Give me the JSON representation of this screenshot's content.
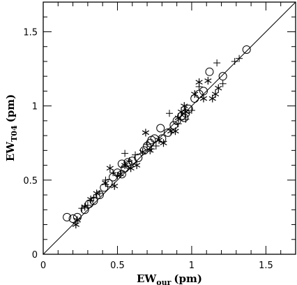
{
  "chart_data": {
    "type": "scatter",
    "title": "",
    "xlabel_main": "EW",
    "xlabel_sub": "our",
    "xlabel_unit": "(pm)",
    "ylabel_main": "EW",
    "ylabel_sub": "T04",
    "ylabel_unit": "(pm)",
    "xlim": [
      0,
      1.7
    ],
    "ylim": [
      0,
      1.7
    ],
    "x_tick_labels": [
      "0",
      "0.5",
      "1",
      "1.5"
    ],
    "y_tick_labels": [
      "0",
      "0.5",
      "1",
      "1.5"
    ],
    "reference_line": {
      "name": "",
      "x": [
        0,
        1.7
      ],
      "y": [
        0,
        1.7
      ]
    },
    "grid": false,
    "series": [
      {
        "marker": "circle",
        "points": [
          [
            0.16,
            0.25
          ],
          [
            0.2,
            0.24
          ],
          [
            0.23,
            0.25
          ],
          [
            0.28,
            0.3
          ],
          [
            0.31,
            0.34
          ],
          [
            0.34,
            0.36
          ],
          [
            0.38,
            0.4
          ],
          [
            0.41,
            0.45
          ],
          [
            0.44,
            0.48
          ],
          [
            0.47,
            0.52
          ],
          [
            0.5,
            0.55
          ],
          [
            0.53,
            0.54
          ],
          [
            0.55,
            0.58
          ],
          [
            0.58,
            0.6
          ],
          [
            0.6,
            0.63
          ],
          [
            0.53,
            0.61
          ],
          [
            0.57,
            0.62
          ],
          [
            0.64,
            0.65
          ],
          [
            0.68,
            0.7
          ],
          [
            0.7,
            0.73
          ],
          [
            0.72,
            0.75
          ],
          [
            0.73,
            0.77
          ],
          [
            0.75,
            0.78
          ],
          [
            0.79,
            0.85
          ],
          [
            0.8,
            0.78
          ],
          [
            0.84,
            0.82
          ],
          [
            0.88,
            0.87
          ],
          [
            0.9,
            0.9
          ],
          [
            0.93,
            0.93
          ],
          [
            0.95,
            0.92
          ],
          [
            0.96,
            0.95
          ],
          [
            0.98,
            0.98
          ],
          [
            1.02,
            1.05
          ],
          [
            1.05,
            1.08
          ],
          [
            1.08,
            1.1
          ],
          [
            1.12,
            1.23
          ],
          [
            1.21,
            1.2
          ],
          [
            1.37,
            1.38
          ]
        ]
      },
      {
        "marker": "plus",
        "points": [
          [
            0.26,
            0.31
          ],
          [
            0.3,
            0.33
          ],
          [
            0.34,
            0.38
          ],
          [
            0.38,
            0.41
          ],
          [
            0.42,
            0.5
          ],
          [
            0.47,
            0.55
          ],
          [
            0.5,
            0.53
          ],
          [
            0.55,
            0.68
          ],
          [
            0.58,
            0.63
          ],
          [
            0.62,
            0.67
          ],
          [
            0.7,
            0.74
          ],
          [
            0.73,
            0.71
          ],
          [
            0.76,
            0.73
          ],
          [
            0.85,
            0.95
          ],
          [
            0.91,
            0.88
          ],
          [
            0.96,
            0.91
          ],
          [
            1.0,
            0.97
          ],
          [
            1.05,
            1.13
          ],
          [
            1.17,
            1.29
          ],
          [
            1.21,
            1.15
          ],
          [
            1.29,
            1.3
          ],
          [
            1.32,
            1.32
          ]
        ]
      },
      {
        "marker": "asterisk",
        "points": [
          [
            0.22,
            0.2
          ],
          [
            0.23,
            0.23
          ],
          [
            0.28,
            0.32
          ],
          [
            0.32,
            0.37
          ],
          [
            0.36,
            0.41
          ],
          [
            0.42,
            0.48
          ],
          [
            0.45,
            0.58
          ],
          [
            0.48,
            0.46
          ],
          [
            0.52,
            0.54
          ],
          [
            0.55,
            0.6
          ],
          [
            0.59,
            0.58
          ],
          [
            0.63,
            0.6
          ],
          [
            0.67,
            0.69
          ],
          [
            0.69,
            0.82
          ],
          [
            0.72,
            0.7
          ],
          [
            0.78,
            0.77
          ],
          [
            0.81,
            0.75
          ],
          [
            0.86,
            0.83
          ],
          [
            0.89,
            0.83
          ],
          [
            0.91,
            0.92
          ],
          [
            0.93,
            0.96
          ],
          [
            0.95,
            1.0
          ],
          [
            0.96,
            0.96
          ],
          [
            1.02,
            1.08
          ],
          [
            1.05,
            1.16
          ],
          [
            1.08,
            1.05
          ],
          [
            1.11,
            1.17
          ],
          [
            1.14,
            1.05
          ],
          [
            1.16,
            1.08
          ],
          [
            1.18,
            1.12
          ]
        ]
      }
    ]
  }
}
